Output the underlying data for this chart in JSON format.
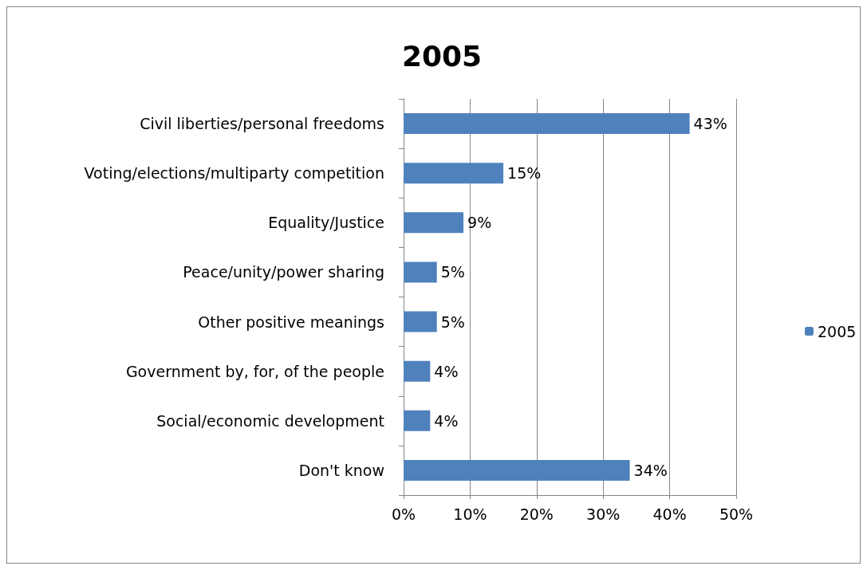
{
  "chart_data": {
    "type": "bar",
    "title": "2005",
    "orientation": "horizontal",
    "categories": [
      "Civil liberties/personal freedoms",
      "Voting/elections/multiparty competition",
      "Equality/Justice",
      "Peace/unity/power sharing",
      "Other positive meanings",
      "Government by, for, of the people",
      "Social/economic development",
      "Don't know"
    ],
    "series": [
      {
        "name": "2005",
        "color": "#4f81bd",
        "values": [
          43,
          15,
          9,
          5,
          5,
          4,
          4,
          34
        ],
        "value_labels": [
          "43%",
          "15%",
          "9%",
          "5%",
          "5%",
          "4%",
          "4%",
          "34%"
        ]
      }
    ],
    "xlim": [
      0,
      50
    ],
    "xticks": [
      {
        "value": 0,
        "label": "0%"
      },
      {
        "value": 10,
        "label": "10%"
      },
      {
        "value": 20,
        "label": "20%"
      },
      {
        "value": 30,
        "label": "30%"
      },
      {
        "value": 40,
        "label": "40%"
      },
      {
        "value": 50,
        "label": "50%"
      }
    ],
    "grid": "x",
    "legend": "right"
  }
}
